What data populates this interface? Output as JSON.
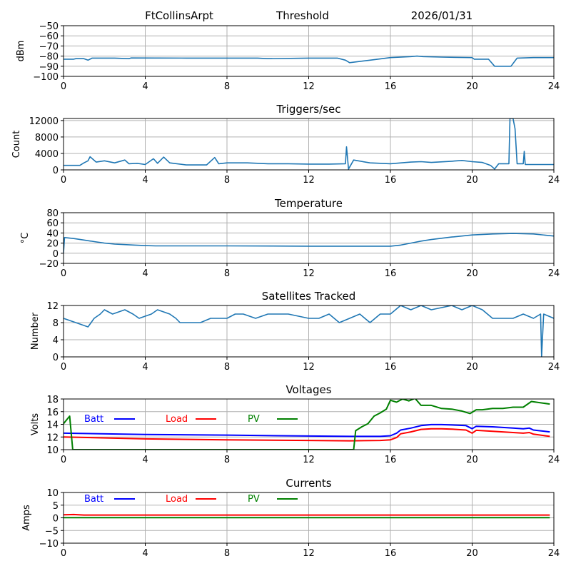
{
  "header": {
    "station": "FtCollinsArpt",
    "mode": "Threshold",
    "date": "2026/01/31"
  },
  "chart_data": [
    {
      "id": "threshold",
      "type": "line",
      "title": "",
      "xlabel": "",
      "ylabel": "dBm",
      "xlim": [
        0,
        24
      ],
      "ylim": [
        -100,
        -50
      ],
      "xticks": [
        0,
        4,
        8,
        12,
        16,
        20,
        24
      ],
      "yticks": [
        -100,
        -90,
        -80,
        -70,
        -60,
        -50
      ],
      "ytick_labels": [
        "−100",
        "−90",
        "−80",
        "−70",
        "−60",
        "−50"
      ],
      "grid": true,
      "series": [
        {
          "name": "Threshold",
          "color": "#1f77b4",
          "x": [
            0,
            0.5,
            0.6,
            1.0,
            1.2,
            1.4,
            2.5,
            3.2,
            3.3,
            6,
            8,
            9.5,
            10,
            12,
            13.4,
            13.8,
            14.0,
            15,
            16,
            17,
            17.3,
            17.6,
            18.5,
            20,
            20.1,
            20.8,
            21.1,
            21.9,
            22.2,
            23,
            24
          ],
          "y": [
            -83,
            -83,
            -82.5,
            -82.5,
            -84,
            -82,
            -82,
            -82.5,
            -81.8,
            -82,
            -82,
            -82,
            -82.5,
            -82,
            -82,
            -84,
            -86.5,
            -84,
            -81.5,
            -80.5,
            -80,
            -80.5,
            -81,
            -81.5,
            -83,
            -83,
            -90,
            -90,
            -82,
            -81.5,
            -81.5
          ]
        }
      ]
    },
    {
      "id": "triggers",
      "type": "line",
      "title": "Triggers/sec",
      "xlabel": "",
      "ylabel": "Count",
      "xlim": [
        0,
        24
      ],
      "ylim": [
        0,
        12500
      ],
      "xticks": [
        0,
        4,
        8,
        12,
        16,
        20,
        24
      ],
      "yticks": [
        0,
        4000,
        8000,
        12000
      ],
      "ytick_labels": [
        "0",
        "4000",
        "8000",
        "12000"
      ],
      "grid": true,
      "series": [
        {
          "name": "Triggers",
          "color": "#1f77b4",
          "x": [
            0,
            0.8,
            1.0,
            1.2,
            1.3,
            1.6,
            2.0,
            2.5,
            3.0,
            3.2,
            3.6,
            4.0,
            4.4,
            4.6,
            4.9,
            5.2,
            6.0,
            7.0,
            7.4,
            7.6,
            8.0,
            9.0,
            10.0,
            11.0,
            12.0,
            13.0,
            13.8,
            13.85,
            13.95,
            14.2,
            15.0,
            16.0,
            17.0,
            17.5,
            18.0,
            19.0,
            19.5,
            20.0,
            20.5,
            20.9,
            21.1,
            21.3,
            21.8,
            21.85,
            22.0,
            22.1,
            22.2,
            22.5,
            22.55,
            22.6,
            23.0,
            24.0
          ],
          "y": [
            1100,
            1100,
            1700,
            2200,
            3200,
            1900,
            2200,
            1700,
            2400,
            1500,
            1600,
            1300,
            2700,
            1600,
            3100,
            1700,
            1200,
            1200,
            3000,
            1500,
            1700,
            1700,
            1500,
            1500,
            1400,
            1400,
            1500,
            5600,
            200,
            2400,
            1700,
            1500,
            1900,
            2000,
            1800,
            2100,
            2300,
            2000,
            1800,
            1100,
            200,
            1500,
            1500,
            12500,
            12500,
            10000,
            1500,
            1500,
            4500,
            1300,
            1300,
            1300
          ]
        }
      ]
    },
    {
      "id": "temperature",
      "type": "line",
      "title": "Temperature",
      "xlabel": "",
      "ylabel": "°C",
      "xlim": [
        0,
        24
      ],
      "ylim": [
        -20,
        80
      ],
      "xticks": [
        0,
        4,
        8,
        12,
        16,
        20,
        24
      ],
      "yticks": [
        -20,
        0,
        20,
        40,
        60,
        80
      ],
      "ytick_labels": [
        "−20",
        "0",
        "20",
        "40",
        "60",
        "80"
      ],
      "grid": true,
      "series": [
        {
          "name": "Temperature",
          "color": "#1f77b4",
          "x": [
            0,
            0.05,
            0.5,
            1.0,
            1.5,
            2.0,
            2.5,
            3.0,
            3.5,
            4.0,
            4.5,
            8,
            12,
            16,
            16.5,
            17,
            17.5,
            18,
            19,
            20,
            21,
            22,
            23,
            24
          ],
          "y": [
            0,
            31,
            29,
            26,
            23,
            20,
            18,
            17,
            16,
            15,
            14.5,
            14.5,
            14,
            14,
            16,
            20,
            24,
            27,
            32,
            36,
            38,
            39,
            38,
            34
          ]
        }
      ]
    },
    {
      "id": "satellites",
      "type": "line",
      "title": "Satellites Tracked",
      "xlabel": "",
      "ylabel": "Number",
      "xlim": [
        0,
        24
      ],
      "ylim": [
        0,
        12
      ],
      "xticks": [
        0,
        4,
        8,
        12,
        16,
        20,
        24
      ],
      "yticks": [
        0,
        4,
        8,
        12
      ],
      "ytick_labels": [
        "0",
        "4",
        "8",
        "12"
      ],
      "grid": true,
      "series": [
        {
          "name": "Satellites",
          "color": "#1f77b4",
          "x": [
            0,
            0.6,
            1.2,
            1.5,
            1.8,
            2.0,
            2.4,
            3.0,
            3.4,
            3.7,
            4.3,
            4.6,
            5.2,
            5.5,
            5.7,
            6.0,
            6.7,
            7.2,
            7.5,
            8.0,
            8.4,
            8.8,
            9.4,
            10.0,
            11.0,
            12.0,
            12.5,
            13.0,
            13.5,
            14.0,
            14.5,
            15.0,
            15.5,
            16.0,
            16.5,
            17.0,
            17.5,
            18.0,
            19.0,
            19.5,
            20.0,
            20.5,
            21.0,
            21.5,
            22.0,
            22.5,
            23.0,
            23.35,
            23.4,
            23.5,
            24.0
          ],
          "y": [
            9,
            8,
            7,
            9,
            10,
            11,
            10,
            11,
            10,
            9,
            10,
            11,
            10,
            9,
            8,
            8,
            8,
            9,
            9,
            9,
            10,
            10,
            9,
            10,
            10,
            9,
            9,
            10,
            8,
            9,
            10,
            8,
            10,
            10,
            12,
            11,
            12,
            11,
            12,
            11,
            12,
            11,
            9,
            9,
            9,
            10,
            9,
            10,
            0,
            10,
            9
          ]
        }
      ]
    },
    {
      "id": "voltages",
      "type": "line",
      "title": "Voltages",
      "xlabel": "",
      "ylabel": "Volts",
      "xlim": [
        0,
        24
      ],
      "ylim": [
        10,
        18
      ],
      "xticks": [
        0,
        4,
        8,
        12,
        16,
        20,
        24
      ],
      "yticks": [
        10,
        12,
        14,
        16,
        18
      ],
      "ytick_labels": [
        "10",
        "12",
        "14",
        "16",
        "18"
      ],
      "grid": true,
      "legend": {
        "placement": "top-left",
        "entries": [
          "Batt",
          "Load",
          "PV"
        ]
      },
      "series": [
        {
          "name": "Batt",
          "color": "#0000ff",
          "x": [
            0,
            4,
            8,
            12,
            14,
            15.5,
            16,
            16.3,
            16.5,
            17,
            17.5,
            18,
            18.5,
            19,
            19.7,
            20,
            20.2,
            21,
            22,
            22.5,
            22.8,
            23,
            23.8
          ],
          "y": [
            12.6,
            12.4,
            12.3,
            12.15,
            12.1,
            12.1,
            12.2,
            12.6,
            13.1,
            13.4,
            13.8,
            13.95,
            13.95,
            13.9,
            13.8,
            13.3,
            13.7,
            13.6,
            13.4,
            13.3,
            13.4,
            13.1,
            12.8
          ]
        },
        {
          "name": "Load",
          "color": "#ff0000",
          "x": [
            0,
            4,
            8,
            12,
            14,
            15.5,
            16,
            16.3,
            16.5,
            17,
            17.5,
            18,
            18.5,
            19,
            19.7,
            20,
            20.2,
            21,
            22,
            22.5,
            22.8,
            23,
            23.8
          ],
          "y": [
            12.0,
            11.7,
            11.55,
            11.45,
            11.4,
            11.45,
            11.55,
            11.9,
            12.5,
            12.8,
            13.2,
            13.3,
            13.3,
            13.25,
            13.1,
            12.6,
            13.05,
            12.9,
            12.7,
            12.6,
            12.7,
            12.45,
            12.1
          ]
        },
        {
          "name": "PV",
          "color": "#008000",
          "x": [
            0,
            0.3,
            0.45,
            14.2,
            14.3,
            14.6,
            14.9,
            15.2,
            15.5,
            15.8,
            16.0,
            16.3,
            16.6,
            16.9,
            17.2,
            17.5,
            18.0,
            18.5,
            19.0,
            19.5,
            19.9,
            20.2,
            20.5,
            21,
            21.5,
            22,
            22.5,
            22.9,
            23.8
          ],
          "y": [
            14.1,
            15.3,
            10,
            10,
            13.0,
            13.6,
            14.1,
            15.3,
            15.8,
            16.4,
            17.8,
            17.5,
            18.0,
            17.7,
            18.1,
            17.0,
            17.0,
            16.5,
            16.4,
            16.1,
            15.7,
            16.3,
            16.3,
            16.5,
            16.5,
            16.7,
            16.7,
            17.6,
            17.2
          ]
        }
      ]
    },
    {
      "id": "currents",
      "type": "line",
      "title": "Currents",
      "xlabel": "",
      "ylabel": "Amps",
      "xlim": [
        0,
        24
      ],
      "ylim": [
        -10,
        10
      ],
      "xticks": [
        0,
        4,
        8,
        12,
        16,
        20,
        24
      ],
      "yticks": [
        -10,
        -5,
        0,
        5,
        10
      ],
      "ytick_labels": [
        "−10",
        "−5",
        "0",
        "5",
        "10"
      ],
      "grid": true,
      "legend": {
        "placement": "top-left",
        "entries": [
          "Batt",
          "Load",
          "PV"
        ]
      },
      "series": [
        {
          "name": "Batt",
          "color": "#0000ff",
          "x": [],
          "y": []
        },
        {
          "name": "Load",
          "color": "#ff0000",
          "x": [
            0,
            0.5,
            1,
            4,
            8,
            12,
            16,
            20,
            23.8
          ],
          "y": [
            1.2,
            1.3,
            1.1,
            1.1,
            1.1,
            1.1,
            1.1,
            1.1,
            1.1
          ]
        },
        {
          "name": "PV",
          "color": "#008000",
          "x": [
            0,
            4,
            8,
            12,
            16,
            20,
            23.8
          ],
          "y": [
            0.05,
            0.05,
            0.05,
            0.05,
            0.05,
            0.05,
            0.05
          ]
        }
      ]
    }
  ]
}
